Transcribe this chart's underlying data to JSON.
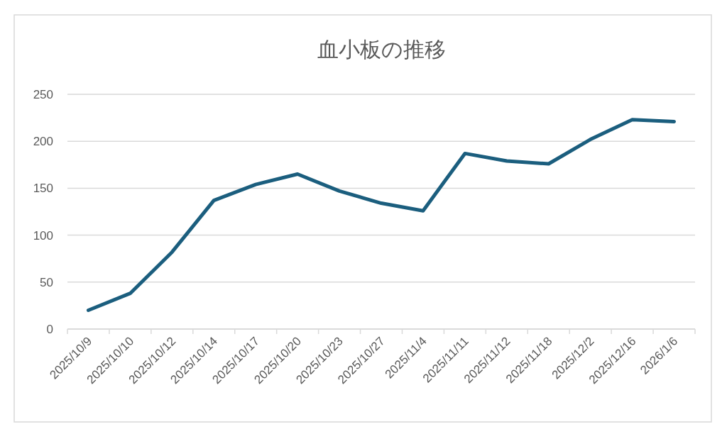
{
  "chart_data": {
    "type": "line",
    "title": "血小板の推移",
    "categories": [
      "2025/10/9",
      "2025/10/10",
      "2025/10/12",
      "2025/10/14",
      "2025/10/17",
      "2025/10/20",
      "2025/10/23",
      "2025/10/27",
      "2025/11/4",
      "2025/11/11",
      "2025/11/12",
      "2025/11/18",
      "2025/12/2",
      "2025/12/16",
      "2026/1/6"
    ],
    "series": [
      {
        "color": "#1b5e7e",
        "values": [
          20,
          38,
          82,
          137,
          154,
          165,
          147,
          134,
          126,
          187,
          179,
          176,
          202,
          223,
          221
        ]
      }
    ],
    "ylim": [
      0,
      250
    ],
    "yticks": [
      0,
      50,
      100,
      150,
      200,
      250
    ],
    "grid": "y",
    "marker": "none",
    "line_style": "solid"
  }
}
